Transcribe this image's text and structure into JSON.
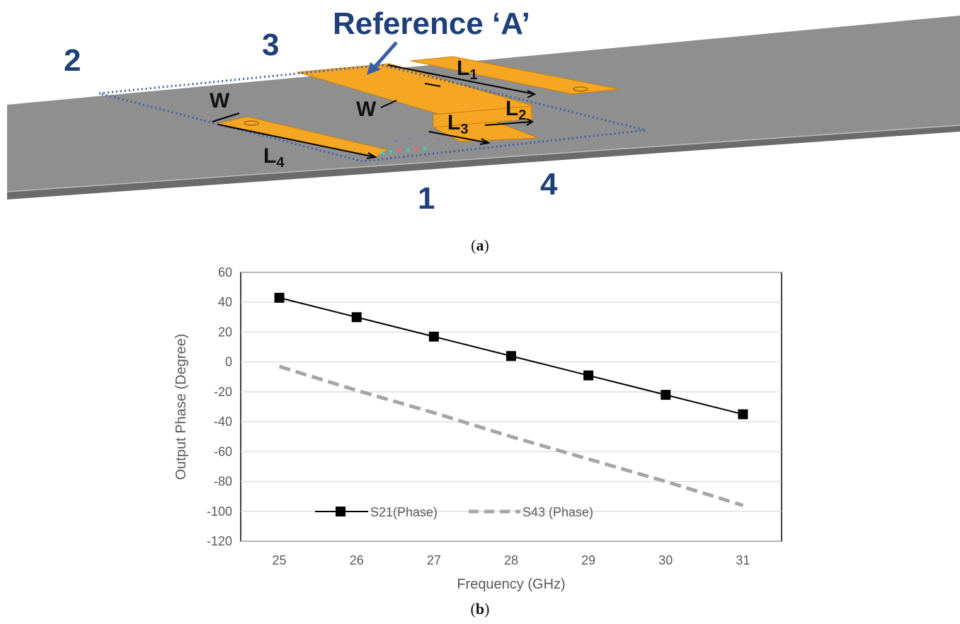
{
  "figure_a": {
    "reference_label": "Reference ‘A’",
    "ports": {
      "p1": "1",
      "p2": "2",
      "p3": "3",
      "p4": "4"
    },
    "dimensions": {
      "w_left": "W",
      "w_center": "W",
      "l1": "L",
      "l1_sub": "1",
      "l2": "L",
      "l2_sub": "2",
      "l3": "L",
      "l3_sub": "3",
      "l4": "L",
      "l4_sub": "4"
    },
    "colors": {
      "substrate": "#8f8f8f",
      "trace": "#f5a623",
      "outline": "#3a5fa8",
      "port_text": "#1f3f7a"
    },
    "caption": {
      "open": "(",
      "letter": "a",
      "close": ")"
    }
  },
  "figure_b": {
    "caption": {
      "open": "(",
      "letter": "b",
      "close": ")"
    }
  },
  "chart_data": {
    "type": "line",
    "x": [
      25,
      26,
      27,
      28,
      29,
      30,
      31
    ],
    "xlabel": "Frequency (GHz)",
    "ylabel": "Output Phase  (Degree)",
    "xlim": [
      24.5,
      31.5
    ],
    "ylim": [
      -120,
      60
    ],
    "yticks": [
      60,
      40,
      20,
      0,
      -20,
      -40,
      -60,
      -80,
      -100,
      -120
    ],
    "xticks": [
      25,
      26,
      27,
      28,
      29,
      30,
      31
    ],
    "grid": "horizontal",
    "legend_position": "bottom-left inside",
    "series": [
      {
        "name": "S21(Phase)",
        "values": [
          43,
          30,
          17,
          4,
          -9,
          -22,
          -35
        ],
        "color": "#000000",
        "style": "solid",
        "marker": "square"
      },
      {
        "name": "S43 (Phase)",
        "values": [
          -3,
          -19,
          -34,
          -50,
          -65,
          -80,
          -96
        ],
        "color": "#a6a6a6",
        "style": "dashed",
        "marker": "none"
      }
    ]
  }
}
